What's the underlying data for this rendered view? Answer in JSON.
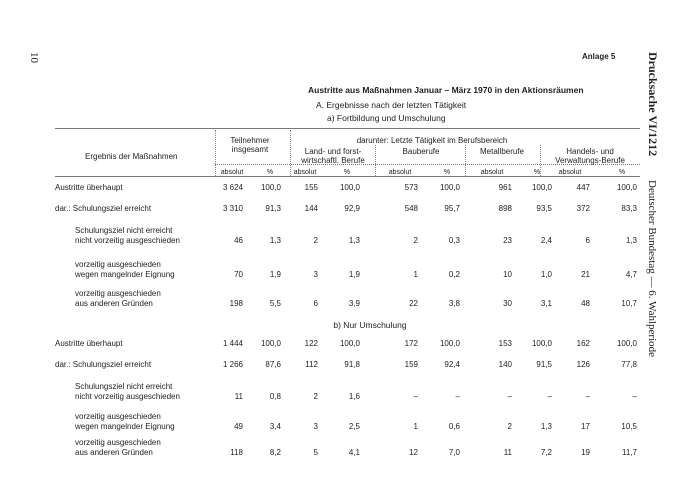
{
  "page_number": "10",
  "annex": "Anlage 5",
  "side": {
    "doc": "Drucksache VI/1212",
    "body": "Deutscher Bundestag — 6. Wahlperiode"
  },
  "title": "Austritte aus Maßnahmen Januar – März 1970 in den Aktionsräumen",
  "subtitle": "A. Ergebnisse nach der letzten Tätigkeit",
  "subsection": "a) Fortbildung und Umschulung",
  "table": {
    "header": {
      "row_label": "Ergebnis der Maßnahmen",
      "total": [
        "Teilnehmer",
        "insgesamt"
      ],
      "group": "darunter: Letzte Tätigkeit im Berufsbereich",
      "groups": [
        [
          "Land- und forst-",
          "wirtschaftl. Berufe"
        ],
        [
          "Bauberufe"
        ],
        [
          "Metallberufe"
        ],
        [
          "Handels- und",
          "Verwaltungs-Berufe"
        ]
      ],
      "sub": [
        "absolut",
        "%",
        "absolut",
        "%",
        "absolut",
        "%",
        "absolut",
        "%",
        "absolut",
        "%"
      ]
    },
    "section_a": {
      "rows": [
        {
          "label": [
            "Austritte überhaupt"
          ],
          "cells": [
            "3 624",
            "100,0",
            "155",
            "100,0",
            "573",
            "100,0",
            "961",
            "100,0",
            "447",
            "100,0"
          ]
        },
        {
          "label": [
            "dar.: Schulungsziel erreicht"
          ],
          "cells": [
            "3 310",
            "91,3",
            "144",
            "92,9",
            "548",
            "95,7",
            "898",
            "93,5",
            "372",
            "83,3"
          ]
        },
        {
          "label": [
            "Schulungsziel nicht erreicht",
            "nicht vorzeitig ausgeschieden"
          ],
          "cells": [
            "46",
            "1,3",
            "2",
            "1,3",
            "2",
            "0,3",
            "23",
            "2,4",
            "6",
            "1,3"
          ]
        },
        {
          "label": [
            "vorzeitig ausgeschieden",
            "wegen mangelnder Eignung"
          ],
          "cells": [
            "70",
            "1,9",
            "3",
            "1,9",
            "1",
            "0,2",
            "10",
            "1,0",
            "21",
            "4,7"
          ]
        },
        {
          "label": [
            "vorzeitig ausgeschieden",
            "aus anderen Gründen"
          ],
          "cells": [
            "198",
            "5,5",
            "6",
            "3,9",
            "22",
            "3,8",
            "30",
            "3,1",
            "48",
            "10,7"
          ]
        }
      ]
    },
    "section_b": {
      "heading": "b) Nur Umschulung",
      "rows": [
        {
          "label": [
            "Austritte überhaupt"
          ],
          "cells": [
            "1 444",
            "100,0",
            "122",
            "100,0",
            "172",
            "100,0",
            "153",
            "100,0",
            "162",
            "100,0"
          ]
        },
        {
          "label": [
            "dar.: Schulungsziel erreicht"
          ],
          "cells": [
            "1 266",
            "87,6",
            "112",
            "91,8",
            "159",
            "92,4",
            "140",
            "91,5",
            "126",
            "77,8"
          ]
        },
        {
          "label": [
            "Schulungsziel nicht erreicht",
            "nicht vorzeitig ausgeschieden"
          ],
          "cells": [
            "11",
            "0,8",
            "2",
            "1,6",
            "–",
            "–",
            "–",
            "–",
            "–",
            "–"
          ]
        },
        {
          "label": [
            "vorzeitig ausgeschieden",
            "wegen mangelnder Eignung"
          ],
          "cells": [
            "49",
            "3,4",
            "3",
            "2,5",
            "1",
            "0,6",
            "2",
            "1,3",
            "17",
            "10,5"
          ]
        },
        {
          "label": [
            "vorzeitig ausgeschieden",
            "aus anderen Gründen"
          ],
          "cells": [
            "118",
            "8,2",
            "5",
            "4,1",
            "12",
            "7,0",
            "11",
            "7,2",
            "19",
            "11,7"
          ]
        }
      ]
    }
  }
}
